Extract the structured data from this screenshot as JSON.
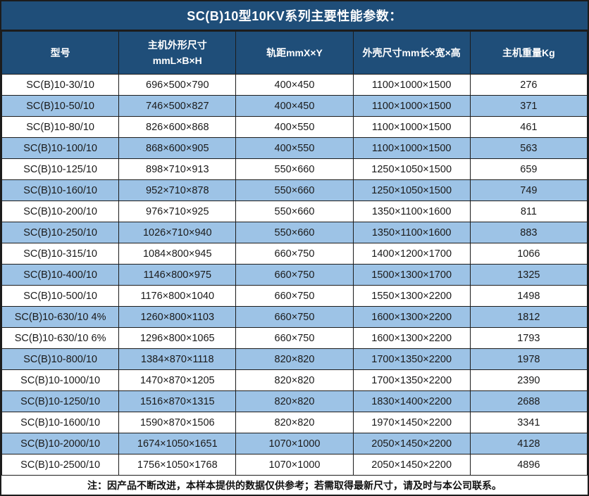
{
  "title": "SC(B)10型10KV系列主要性能参数：",
  "colors": {
    "header_bg": "#1F4E79",
    "alt_row_bg": "#9DC3E6",
    "border": "#1C1C1C"
  },
  "columns": [
    {
      "label": "型号"
    },
    {
      "label": "主机外形尺寸 mmL×B×H",
      "line1": "主机外形尺寸",
      "line2": "mmL×B×H"
    },
    {
      "label": "轨距mmX×Y"
    },
    {
      "label": "外壳尺寸mm长×宽×高"
    },
    {
      "label": "主机重量Kg"
    }
  ],
  "rows": [
    [
      "SC(B)10-30/10",
      "696×500×790",
      "400×450",
      "1100×1000×1500",
      "276"
    ],
    [
      "SC(B)10-50/10",
      "746×500×827",
      "400×450",
      "1100×1000×1500",
      "371"
    ],
    [
      "SC(B)10-80/10",
      "826×600×868",
      "400×550",
      "1100×1000×1500",
      "461"
    ],
    [
      "SC(B)10-100/10",
      "868×600×905",
      "400×550",
      "1100×1000×1500",
      "563"
    ],
    [
      "SC(B)10-125/10",
      "898×710×913",
      "550×660",
      "1250×1050×1500",
      "659"
    ],
    [
      "SC(B)10-160/10",
      "952×710×878",
      "550×660",
      "1250×1050×1500",
      "749"
    ],
    [
      "SC(B)10-200/10",
      "976×710×925",
      "550×660",
      "1350×1100×1600",
      "811"
    ],
    [
      "SC(B)10-250/10",
      "1026×710×940",
      "550×660",
      "1350×1100×1600",
      "883"
    ],
    [
      "SC(B)10-315/10",
      "1084×800×945",
      "660×750",
      "1400×1200×1700",
      "1066"
    ],
    [
      "SC(B)10-400/10",
      "1146×800×975",
      "660×750",
      "1500×1300×1700",
      "1325"
    ],
    [
      "SC(B)10-500/10",
      "1176×800×1040",
      "660×750",
      "1550×1300×2200",
      "1498"
    ],
    [
      "SC(B)10-630/10 4%",
      "1260×800×1103",
      "660×750",
      "1600×1300×2200",
      "1812"
    ],
    [
      "SC(B)10-630/10 6%",
      "1296×800×1065",
      "660×750",
      "1600×1300×2200",
      "1793"
    ],
    [
      "SC(B)10-800/10",
      "1384×870×1118",
      "820×820",
      "1700×1350×2200",
      "1978"
    ],
    [
      "SC(B)10-1000/10",
      "1470×870×1205",
      "820×820",
      "1700×1350×2200",
      "2390"
    ],
    [
      "SC(B)10-1250/10",
      "1516×870×1315",
      "820×820",
      "1830×1400×2200",
      "2688"
    ],
    [
      "SC(B)10-1600/10",
      "1590×870×1506",
      "820×820",
      "1970×1450×2200",
      "3341"
    ],
    [
      "SC(B)10-2000/10",
      "1674×1050×1651",
      "1070×1000",
      "2050×1450×2200",
      "4128"
    ],
    [
      "SC(B)10-2500/10",
      "1756×1050×1768",
      "1070×1000",
      "2050×1450×2200",
      "4896"
    ]
  ],
  "cell_names": [
    "cell-model",
    "cell-main-dimensions",
    "cell-rail-gauge",
    "cell-shell-dimensions",
    "cell-weight"
  ],
  "footnote": "注：因产品不断改进，本样本提供的数据仅供参考；若需取得最新尺寸，请及时与本公司联系。"
}
